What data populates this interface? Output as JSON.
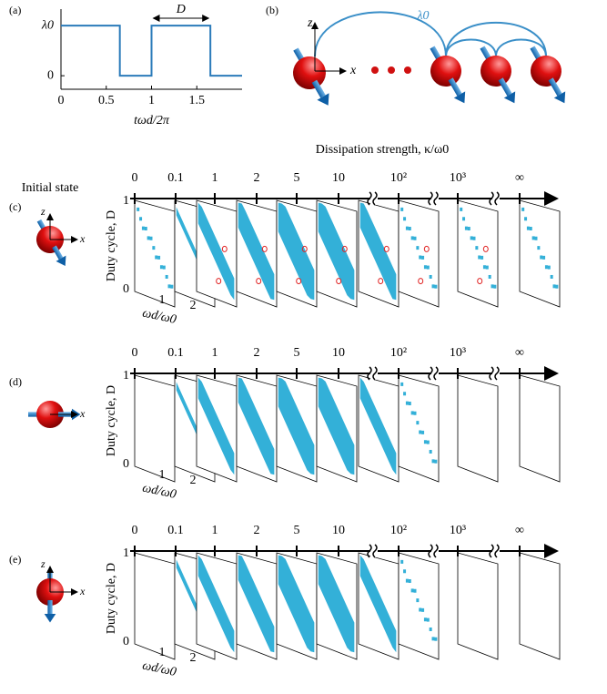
{
  "chart_data": {
    "type": "line",
    "panel_label": "(a)",
    "x_label": "tωd/2π",
    "annotation": "D",
    "x": [
      0,
      0.65,
      0.65,
      1,
      1,
      1.65,
      1.65,
      2
    ],
    "values": [
      1,
      1,
      0,
      0,
      1,
      1,
      0,
      0
    ],
    "color": "#2b7bba",
    "xlim": [
      0,
      2
    ],
    "ylim": [
      -0.27,
      1.33
    ],
    "xticks": [
      0,
      0.5,
      1,
      1.5
    ],
    "yticks": [
      0,
      {
        "value": 1,
        "label": "λ0"
      }
    ]
  },
  "panel_b": {
    "label": "(b)",
    "axis_z": "z",
    "axis_x": "x",
    "coupling": "λ0"
  },
  "dissipation_axis": {
    "title": "Dissipation strength,  κ/ω0",
    "initial_state": "Initial state",
    "ticks": [
      "0",
      "0.1",
      "1",
      "2",
      "5",
      "10",
      "10²",
      "10³",
      "∞"
    ]
  },
  "rows": [
    {
      "label": "(c)",
      "axis_z": "z",
      "axis_x": "x",
      "y_label": "Duty cycle, D",
      "y_ticks": [
        "1",
        "0"
      ],
      "x_label": "ωd/ω0",
      "x_ticks": [
        "1",
        "2"
      ]
    },
    {
      "label": "(d)",
      "axis_x": "x",
      "y_label": "Duty cycle, D",
      "y_ticks": [
        "1",
        "0"
      ],
      "x_label": "ωd/ω0",
      "x_ticks": [
        "1",
        "2"
      ]
    },
    {
      "label": "(e)",
      "axis_z": "z",
      "axis_x": "x",
      "y_label": "Duty cycle, D",
      "y_ticks": [
        "1",
        "0"
      ],
      "x_label": "ωd/ω0",
      "x_ticks": [
        "1",
        "2"
      ]
    }
  ]
}
